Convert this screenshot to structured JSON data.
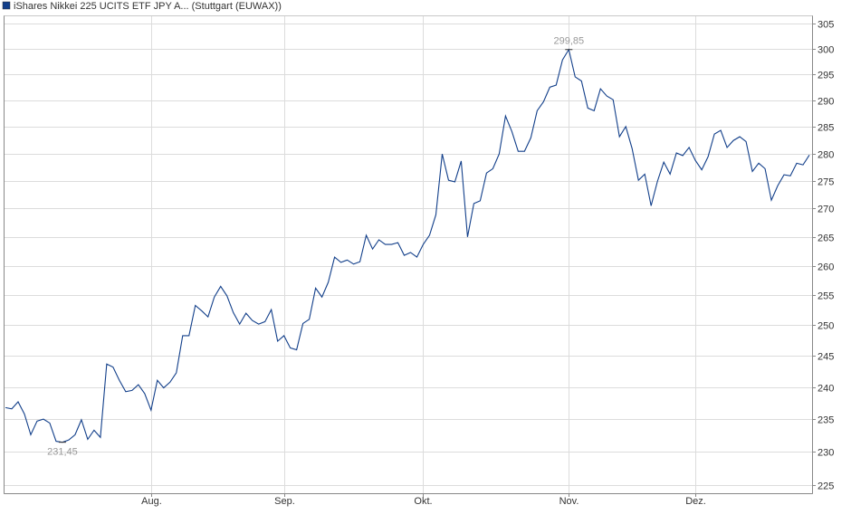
{
  "chart_data": {
    "type": "line",
    "log_scale": true,
    "grid": true,
    "legend": "top-left",
    "categories": [
      null,
      null,
      null,
      null,
      null,
      null,
      null,
      null,
      null,
      null,
      null,
      null,
      null,
      null,
      null,
      null,
      null,
      null,
      null,
      null,
      null,
      null,
      null,
      "Aug.",
      null,
      null,
      null,
      null,
      null,
      null,
      null,
      null,
      null,
      null,
      null,
      null,
      null,
      null,
      null,
      null,
      null,
      null,
      null,
      null,
      "Sep.",
      null,
      null,
      null,
      null,
      null,
      null,
      null,
      null,
      null,
      null,
      null,
      null,
      null,
      null,
      null,
      null,
      null,
      null,
      null,
      null,
      null,
      "Okt.",
      null,
      null,
      null,
      null,
      null,
      null,
      null,
      null,
      null,
      null,
      null,
      null,
      null,
      null,
      null,
      null,
      null,
      null,
      null,
      null,
      null,
      null,
      "Nov.",
      null,
      null,
      null,
      null,
      null,
      null,
      null,
      null,
      null,
      null,
      null,
      null,
      null,
      null,
      null,
      null,
      null,
      null,
      null,
      "Dez.",
      null,
      null,
      null,
      null,
      null,
      null,
      null,
      null,
      null,
      null,
      null,
      null,
      null,
      null,
      null,
      null,
      null,
      null
    ],
    "series": [
      {
        "name": "iShares Nikkei 225 UCITS ETF JPY A... (Stuttgart (EUWAX))",
        "color": "#123f8a",
        "values": [
          236.8,
          236.6,
          237.7,
          235.8,
          232.6,
          234.7,
          235.0,
          234.4,
          231.6,
          231.45,
          231.8,
          232.6,
          234.9,
          231.9,
          233.3,
          232.2,
          243.7,
          243.2,
          241.1,
          239.3,
          239.5,
          240.4,
          239.0,
          236.4,
          241.1,
          239.9,
          240.8,
          242.3,
          248.3,
          248.3,
          253.3,
          252.4,
          251.4,
          254.7,
          256.5,
          254.9,
          252.1,
          250.2,
          252.0,
          250.8,
          250.2,
          250.6,
          252.6,
          247.4,
          248.3,
          246.3,
          246.0,
          250.3,
          251.0,
          256.2,
          254.7,
          257.2,
          261.5,
          260.6,
          261.0,
          260.3,
          260.7,
          265.3,
          262.9,
          264.5,
          263.7,
          263.7,
          264.0,
          261.8,
          262.3,
          261.5,
          263.7,
          265.3,
          268.9,
          279.9,
          275.1,
          274.8,
          278.6,
          265.0,
          270.9,
          271.4,
          276.4,
          277.2,
          279.9,
          287.0,
          284.1,
          280.4,
          280.4,
          282.9,
          288.0,
          289.7,
          292.5,
          292.9,
          297.8,
          299.85,
          294.5,
          293.7,
          288.5,
          288.0,
          292.2,
          290.8,
          290.1,
          283.1,
          285.0,
          280.9,
          275.1,
          276.2,
          270.5,
          274.9,
          278.4,
          276.2,
          280.1,
          279.6,
          281.1,
          278.7,
          277.0,
          279.4,
          283.6,
          284.3,
          281.1,
          282.4,
          283.1,
          282.2,
          276.7,
          278.2,
          277.2,
          271.5,
          274.1,
          276.1,
          275.9,
          278.2,
          277.9,
          279.7
        ],
        "value_labels": [
          null,
          null,
          null,
          null,
          null,
          null,
          null,
          null,
          null,
          "231,45",
          null,
          null,
          null,
          null,
          null,
          null,
          null,
          null,
          null,
          null,
          null,
          null,
          null,
          null,
          null,
          null,
          null,
          null,
          null,
          null,
          null,
          null,
          null,
          null,
          null,
          null,
          null,
          null,
          null,
          null,
          null,
          null,
          null,
          null,
          null,
          null,
          null,
          null,
          null,
          null,
          null,
          null,
          null,
          null,
          null,
          null,
          null,
          null,
          null,
          null,
          null,
          null,
          null,
          null,
          null,
          null,
          null,
          null,
          null,
          null,
          null,
          null,
          null,
          null,
          null,
          null,
          null,
          null,
          null,
          null,
          null,
          null,
          null,
          null,
          null,
          null,
          null,
          null,
          null,
          "299,85",
          null,
          null,
          null,
          null,
          null,
          null,
          null,
          null,
          null,
          null,
          null,
          null,
          null,
          null,
          null,
          null,
          null,
          null,
          null,
          null,
          null,
          null,
          null,
          null,
          null,
          null,
          null,
          null,
          null,
          null,
          null,
          null,
          null,
          null,
          null,
          null,
          null,
          null
        ]
      }
    ],
    "ylim": [
      223.8,
      306.5
    ],
    "yticks": [
      225,
      230,
      235,
      240,
      245,
      250,
      255,
      260,
      265,
      270,
      275,
      280,
      285,
      290,
      295,
      300,
      305
    ]
  }
}
